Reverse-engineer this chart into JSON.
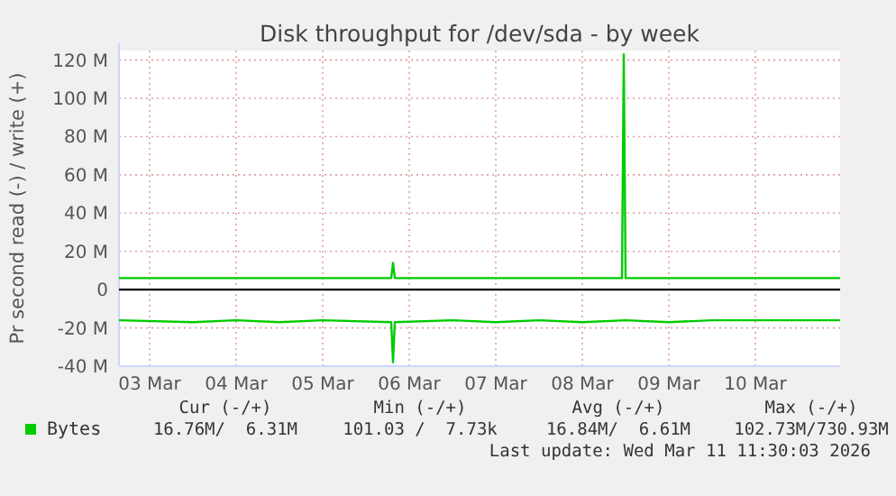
{
  "chart_data": {
    "type": "line",
    "title": "Disk throughput for /dev/sda - by week",
    "ylabel": "Pr second read (-) / write (+)",
    "xlim": [
      "2026-03-03T03:30",
      "2026-03-11T11:30"
    ],
    "xticks": [
      {
        "value": "2026-03-03T12:00",
        "label": "03 Mar"
      },
      {
        "value": "2026-03-04T12:00",
        "label": "04 Mar"
      },
      {
        "value": "2026-03-05T12:00",
        "label": "05 Mar"
      },
      {
        "value": "2026-03-06T12:00",
        "label": "06 Mar"
      },
      {
        "value": "2026-03-07T12:00",
        "label": "07 Mar"
      },
      {
        "value": "2026-03-08T12:00",
        "label": "08 Mar"
      },
      {
        "value": "2026-03-09T12:00",
        "label": "09 Mar"
      },
      {
        "value": "2026-03-10T12:00",
        "label": "10 Mar"
      }
    ],
    "ylim": [
      -40,
      125
    ],
    "yticks": [
      {
        "value": -40,
        "label": "-40 M"
      },
      {
        "value": -20,
        "label": "-20 M"
      },
      0,
      {
        "value": 20,
        "label": "20 M"
      },
      {
        "value": 40,
        "label": "40 M"
      },
      {
        "value": 60,
        "label": "60 M"
      },
      {
        "value": 80,
        "label": "80 M"
      },
      {
        "value": 100,
        "label": "100 M"
      },
      {
        "value": 120,
        "label": "120 M"
      }
    ],
    "grid": true,
    "legend": "bottom left",
    "line_style": "solid",
    "marker": "none",
    "ref_lines": [
      {
        "axis": "y",
        "value": 0,
        "color": "#000000"
      }
    ],
    "series": [
      {
        "name": "Bytes",
        "color": "#00cc00",
        "x": [
          "2026-03-03T03:30",
          "2026-03-04T00:00",
          "2026-03-05T00:00",
          "2026-03-06T07:00",
          "2026-03-06T07:30",
          "2026-03-06T08:00",
          "2026-03-07T00:00",
          "2026-03-08T00:00",
          "2026-03-08T23:00",
          "2026-03-08T23:30",
          "2026-03-09T00:00",
          "2026-03-10T00:00",
          "2026-03-11T11:30"
        ],
        "values": [
          6,
          6,
          6,
          6,
          14,
          6,
          6,
          6,
          6,
          123,
          6,
          6,
          6
        ]
      },
      {
        "color": "#00cc00",
        "x": [
          "2026-03-03T03:30",
          "2026-03-04T00:00",
          "2026-03-04T12:00",
          "2026-03-05T00:00",
          "2026-03-05T12:00",
          "2026-03-06T07:00",
          "2026-03-06T07:30",
          "2026-03-06T08:00",
          "2026-03-07T00:00",
          "2026-03-07T12:00",
          "2026-03-08T00:00",
          "2026-03-08T12:00",
          "2026-03-09T00:00",
          "2026-03-09T12:00",
          "2026-03-10T00:00",
          "2026-03-10T12:00",
          "2026-03-11T11:30"
        ],
        "values": [
          -16,
          -17,
          -16,
          -17,
          -16,
          -17,
          -38,
          -17,
          -16,
          -17,
          -16,
          -17,
          -16,
          -17,
          -16,
          -16,
          -16
        ]
      }
    ],
    "annotations": [
      "Cur (-/+)",
      "Min (-/+)",
      "Avg (-/+)",
      "Max (-/+)",
      "16.76M/  6.31M",
      "101.03 /  7.73k",
      "16.84M/  6.61M",
      "102.73M/730.93M",
      "Last update: Wed Mar 11 11:30:03 2026"
    ]
  }
}
